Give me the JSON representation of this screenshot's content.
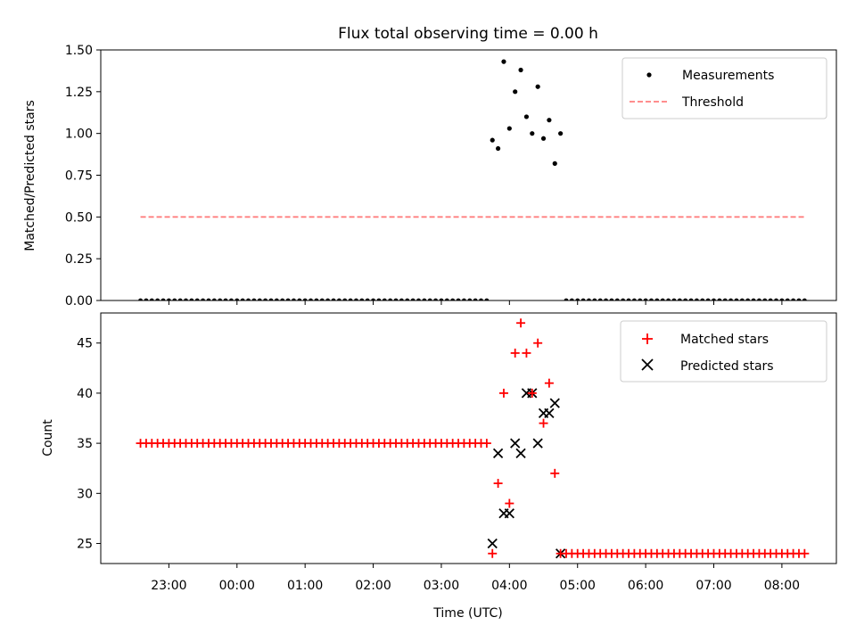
{
  "title": "Flux total observing time = 0.00 h",
  "xlabel": "Time (UTC)",
  "x_ticks": [
    "23:00",
    "00:00",
    "01:00",
    "02:00",
    "03:00",
    "04:00",
    "05:00",
    "06:00",
    "07:00",
    "08:00"
  ],
  "colors": {
    "matched": "#ff0000",
    "predicted": "#000000",
    "threshold": "#ff7f7f",
    "measurements": "#000000"
  },
  "chart_data": [
    {
      "type": "scatter",
      "ylabel": "Matched/Predicted stars",
      "xlim_hours": [
        -2.0,
        8.8
      ],
      "ylim": [
        0.0,
        1.5
      ],
      "y_ticks": [
        "0.00",
        "0.25",
        "0.50",
        "0.75",
        "1.00",
        "1.25",
        "1.50"
      ],
      "legend_position": "upper right",
      "series": [
        {
          "name": "Measurements",
          "style": "dot",
          "nonzero_points": [
            {
              "x": "03:45",
              "y": 0.96
            },
            {
              "x": "03:50",
              "y": 0.91
            },
            {
              "x": "03:55",
              "y": 1.43
            },
            {
              "x": "04:00",
              "y": 1.03
            },
            {
              "x": "04:05",
              "y": 1.25
            },
            {
              "x": "04:10",
              "y": 1.38
            },
            {
              "x": "04:15",
              "y": 1.1
            },
            {
              "x": "04:20",
              "y": 1.0
            },
            {
              "x": "04:25",
              "y": 1.28
            },
            {
              "x": "04:30",
              "y": 0.97
            },
            {
              "x": "04:35",
              "y": 1.08
            },
            {
              "x": "04:40",
              "y": 0.82
            },
            {
              "x": "04:45",
              "y": 1.0
            }
          ],
          "zero_ranges": [
            {
              "start": "22:35",
              "end": "03:40",
              "step_min": 5,
              "y": 0.0
            },
            {
              "start": "04:50",
              "end": "08:20",
              "step_min": 5,
              "y": 0.0
            }
          ]
        },
        {
          "name": "Threshold",
          "style": "dashed",
          "x_range": [
            "22:35",
            "08:20"
          ],
          "y": 0.5
        }
      ]
    },
    {
      "type": "scatter",
      "ylabel": "Count",
      "xlim_hours": [
        -2.0,
        8.8
      ],
      "ylim": [
        23.0,
        48.0
      ],
      "y_ticks": [
        "25",
        "30",
        "35",
        "40",
        "45"
      ],
      "legend_position": "upper right",
      "series": [
        {
          "name": "Matched stars",
          "style": "plus",
          "points": [
            {
              "x": "03:45",
              "y": 24
            },
            {
              "x": "03:50",
              "y": 31
            },
            {
              "x": "03:55",
              "y": 40
            },
            {
              "x": "04:00",
              "y": 29
            },
            {
              "x": "04:05",
              "y": 44
            },
            {
              "x": "04:10",
              "y": 47
            },
            {
              "x": "04:15",
              "y": 44
            },
            {
              "x": "04:20",
              "y": 40
            },
            {
              "x": "04:25",
              "y": 45
            },
            {
              "x": "04:30",
              "y": 37
            },
            {
              "x": "04:35",
              "y": 41
            },
            {
              "x": "04:40",
              "y": 32
            },
            {
              "x": "04:45",
              "y": 24
            }
          ],
          "constant_ranges": [
            {
              "start": "22:35",
              "end": "03:40",
              "step_min": 5,
              "y": 35
            },
            {
              "start": "04:50",
              "end": "08:20",
              "step_min": 5,
              "y": 24
            }
          ]
        },
        {
          "name": "Predicted stars",
          "style": "x",
          "points": [
            {
              "x": "03:45",
              "y": 25
            },
            {
              "x": "03:50",
              "y": 34
            },
            {
              "x": "03:55",
              "y": 28
            },
            {
              "x": "04:00",
              "y": 28
            },
            {
              "x": "04:05",
              "y": 35
            },
            {
              "x": "04:10",
              "y": 34
            },
            {
              "x": "04:15",
              "y": 40
            },
            {
              "x": "04:20",
              "y": 40
            },
            {
              "x": "04:25",
              "y": 35
            },
            {
              "x": "04:30",
              "y": 38
            },
            {
              "x": "04:35",
              "y": 38
            },
            {
              "x": "04:40",
              "y": 39
            },
            {
              "x": "04:45",
              "y": 24
            }
          ]
        }
      ]
    }
  ]
}
